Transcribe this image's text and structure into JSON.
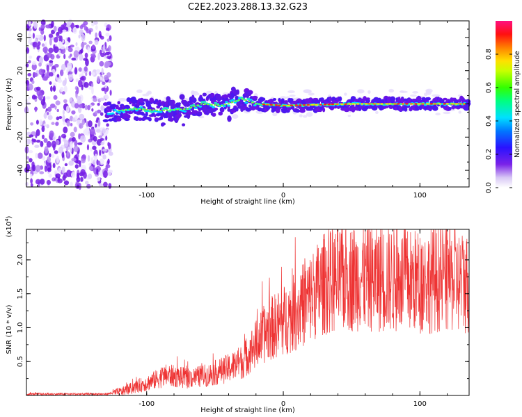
{
  "figure": {
    "title": "C2E2.2023.288.13.32.G23"
  },
  "chart_data": [
    {
      "type": "heatmap",
      "xlabel": "Height of straight line (km)",
      "ylabel": "Frequency (Hz)",
      "xlim": [
        -188,
        136
      ],
      "ylim": [
        -50,
        50
      ],
      "xticks": [
        -100,
        0,
        100
      ],
      "yticks": [
        -40,
        -20,
        0,
        20,
        40
      ],
      "colorbar": {
        "label": "Normalized spectral amplitude",
        "ticks": [
          "0.0",
          "0.2",
          "0.4",
          "0.6",
          "0.8"
        ],
        "range": [
          0,
          1
        ]
      },
      "ridge": {
        "description_points": [
          [
            -130,
            -5
          ],
          [
            -110,
            -3
          ],
          [
            -90,
            -4
          ],
          [
            -70,
            -3
          ],
          [
            -60,
            0
          ],
          [
            -45,
            -1
          ],
          [
            -30,
            3
          ],
          [
            -20,
            0
          ],
          [
            0,
            -1
          ],
          [
            50,
            0
          ],
          [
            100,
            0
          ],
          [
            136,
            0
          ]
        ]
      }
    },
    {
      "type": "line",
      "xlabel": "Height of straight line (km)",
      "ylabel": "SNR (10 * v/v)",
      "yscale_note": "(x10",
      "yscale_exp": "4",
      "xlim": [
        -188,
        136
      ],
      "ylim": [
        0,
        2.45
      ],
      "xticks": [
        -100,
        0,
        100
      ],
      "yticks": [
        "0.5",
        "1.0",
        "1.5",
        "2.0"
      ],
      "color": "#ee3333",
      "trend": [
        [
          -188,
          0.02
        ],
        [
          -130,
          0.02
        ],
        [
          -118,
          0.06
        ],
        [
          -100,
          0.18
        ],
        [
          -85,
          0.3
        ],
        [
          -70,
          0.25
        ],
        [
          -55,
          0.3
        ],
        [
          -40,
          0.4
        ],
        [
          -30,
          0.5
        ],
        [
          -20,
          0.75
        ],
        [
          -12,
          0.95
        ],
        [
          0,
          1.1
        ],
        [
          10,
          1.25
        ],
        [
          20,
          1.45
        ],
        [
          30,
          1.65
        ],
        [
          40,
          1.7
        ],
        [
          55,
          1.75
        ],
        [
          70,
          1.72
        ],
        [
          85,
          1.7
        ],
        [
          100,
          1.68
        ],
        [
          115,
          1.72
        ],
        [
          136,
          1.65
        ]
      ]
    }
  ]
}
